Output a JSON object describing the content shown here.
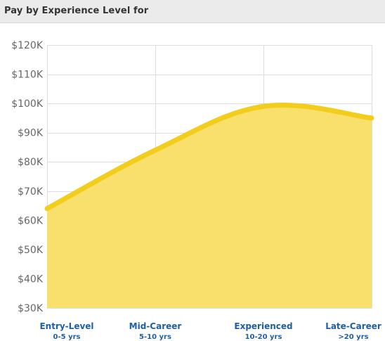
{
  "header": {
    "title": "Pay by Experience Level for"
  },
  "chart_data": {
    "type": "area",
    "title": "",
    "xlabel": "",
    "ylabel": "",
    "categories": [
      "Entry-Level",
      "Mid-Career",
      "Experienced",
      "Late-Career"
    ],
    "category_sublabels": [
      "0-5 yrs",
      "5-10 yrs",
      "10-20 yrs",
      ">20 yrs"
    ],
    "series": [
      {
        "values": [
          64000,
          84000,
          99000,
          95000
        ]
      }
    ],
    "ylim": [
      30000,
      120000
    ],
    "yticks": [
      30000,
      40000,
      50000,
      60000,
      70000,
      80000,
      90000,
      100000,
      110000,
      120000
    ],
    "ytick_labels": [
      "$30K",
      "$40K",
      "$50K",
      "$60K",
      "$70K",
      "$80K",
      "$90K",
      "$100K",
      "$110K",
      "$120K"
    ],
    "grid": true,
    "colors": {
      "line": "#f2cd1c",
      "fill": "#f9df6b",
      "grid": "#dddddd",
      "axis_text": "#666666",
      "category_text": "#1f5ea8"
    }
  }
}
